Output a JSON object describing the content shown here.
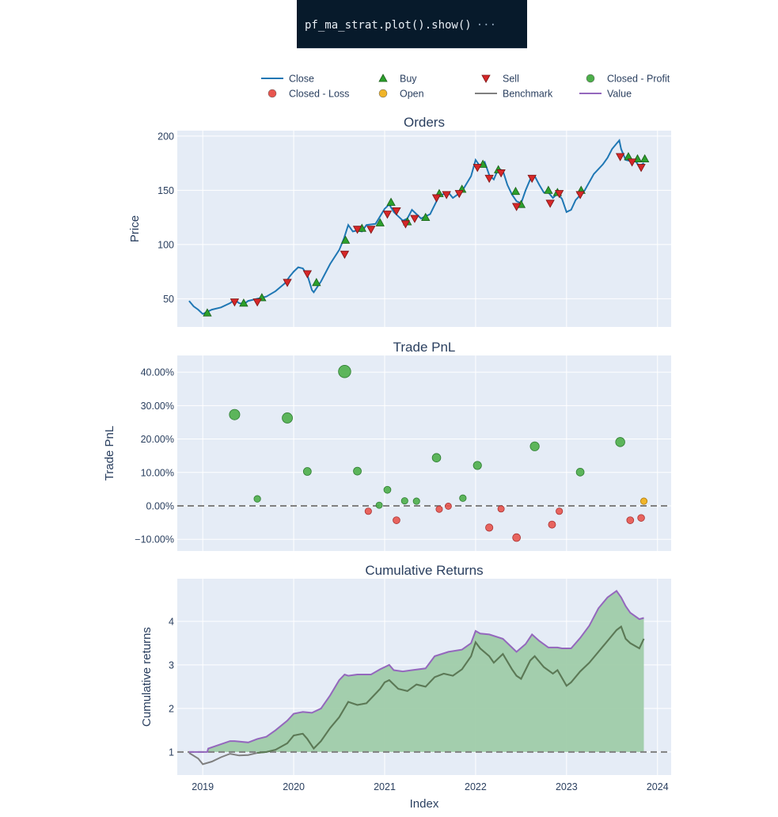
{
  "code": {
    "text": "pf_ma_strat.plot().show()",
    "ellipsis": "···"
  },
  "colors": {
    "plot_bg": "#e5ecf6",
    "grid": "#ffffff",
    "close": "#1f77b4",
    "buy": "#2ca02c",
    "sell": "#d62728",
    "profit": "#4daf4a",
    "loss": "#e8554e",
    "open": "#f0b429",
    "benchmark": "#7f7f7f",
    "value": "#9467bd",
    "fill": "#9fcca9",
    "text": "#2a3f5f"
  },
  "legend": [
    {
      "label": "Close",
      "symbol": "line",
      "color": "#1f77b4"
    },
    {
      "label": "Buy",
      "symbol": "triangle-up",
      "color": "#2ca02c"
    },
    {
      "label": "Sell",
      "symbol": "triangle-down",
      "color": "#d62728"
    },
    {
      "label": "Closed - Profit",
      "symbol": "circle",
      "color": "#4daf4a"
    },
    {
      "label": "Closed - Loss",
      "symbol": "circle",
      "color": "#e8554e"
    },
    {
      "label": "Open",
      "symbol": "circle",
      "color": "#f0b429"
    },
    {
      "label": "Benchmark",
      "symbol": "line",
      "color": "#7f7f7f"
    },
    {
      "label": "Value",
      "symbol": "line",
      "color": "#9467bd"
    }
  ],
  "chart_data": [
    {
      "type": "line",
      "title": "Orders",
      "ylabel": "Price",
      "xlim": [
        2018.72,
        2024.15
      ],
      "ylim": [
        24,
        205
      ],
      "yticks": [
        50,
        100,
        150,
        200
      ],
      "xticks": [
        2019,
        2020,
        2021,
        2022,
        2023,
        2024
      ],
      "close": [
        [
          2018.85,
          48
        ],
        [
          2018.9,
          43
        ],
        [
          2018.95,
          40
        ],
        [
          2019.0,
          36
        ],
        [
          2019.05,
          38
        ],
        [
          2019.1,
          40
        ],
        [
          2019.2,
          42
        ],
        [
          2019.3,
          46
        ],
        [
          2019.35,
          49
        ],
        [
          2019.4,
          46
        ],
        [
          2019.45,
          45
        ],
        [
          2019.5,
          48
        ],
        [
          2019.6,
          50
        ],
        [
          2019.7,
          52
        ],
        [
          2019.8,
          57
        ],
        [
          2019.9,
          64
        ],
        [
          2019.96,
          71
        ],
        [
          2020.0,
          75
        ],
        [
          2020.05,
          79
        ],
        [
          2020.1,
          78
        ],
        [
          2020.15,
          72
        ],
        [
          2020.2,
          58
        ],
        [
          2020.22,
          56
        ],
        [
          2020.3,
          66
        ],
        [
          2020.4,
          82
        ],
        [
          2020.5,
          95
        ],
        [
          2020.55,
          105
        ],
        [
          2020.6,
          118
        ],
        [
          2020.65,
          112
        ],
        [
          2020.7,
          113
        ],
        [
          2020.75,
          112
        ],
        [
          2020.8,
          118
        ],
        [
          2020.9,
          119
        ],
        [
          2020.95,
          126
        ],
        [
          2021.0,
          133
        ],
        [
          2021.05,
          137
        ],
        [
          2021.1,
          130
        ],
        [
          2021.2,
          122
        ],
        [
          2021.25,
          124
        ],
        [
          2021.3,
          132
        ],
        [
          2021.4,
          124
        ],
        [
          2021.45,
          126
        ],
        [
          2021.5,
          128
        ],
        [
          2021.6,
          145
        ],
        [
          2021.7,
          148
        ],
        [
          2021.75,
          143
        ],
        [
          2021.85,
          149
        ],
        [
          2021.95,
          163
        ],
        [
          2022.0,
          178
        ],
        [
          2022.05,
          172
        ],
        [
          2022.1,
          176
        ],
        [
          2022.15,
          164
        ],
        [
          2022.2,
          160
        ],
        [
          2022.25,
          170
        ],
        [
          2022.3,
          168
        ],
        [
          2022.35,
          155
        ],
        [
          2022.4,
          146
        ],
        [
          2022.45,
          140
        ],
        [
          2022.5,
          138
        ],
        [
          2022.55,
          150
        ],
        [
          2022.6,
          160
        ],
        [
          2022.65,
          163
        ],
        [
          2022.7,
          155
        ],
        [
          2022.75,
          148
        ],
        [
          2022.8,
          148
        ],
        [
          2022.85,
          143
        ],
        [
          2022.9,
          147
        ],
        [
          2022.95,
          142
        ],
        [
          2023.0,
          130
        ],
        [
          2023.05,
          132
        ],
        [
          2023.1,
          141
        ],
        [
          2023.2,
          150
        ],
        [
          2023.3,
          165
        ],
        [
          2023.4,
          174
        ],
        [
          2023.45,
          180
        ],
        [
          2023.5,
          188
        ],
        [
          2023.55,
          193
        ],
        [
          2023.58,
          196
        ],
        [
          2023.6,
          188
        ],
        [
          2023.65,
          178
        ],
        [
          2023.7,
          177
        ],
        [
          2023.75,
          178
        ],
        [
          2023.8,
          172
        ],
        [
          2023.85,
          175
        ]
      ],
      "buys": [
        [
          2019.05,
          37
        ],
        [
          2019.45,
          46
        ],
        [
          2019.65,
          51
        ],
        [
          2020.25,
          65
        ],
        [
          2020.57,
          104
        ],
        [
          2020.75,
          115
        ],
        [
          2020.95,
          120
        ],
        [
          2021.07,
          139
        ],
        [
          2021.25,
          121
        ],
        [
          2021.45,
          125
        ],
        [
          2021.6,
          147
        ],
        [
          2021.85,
          151
        ],
        [
          2022.08,
          174
        ],
        [
          2022.25,
          169
        ],
        [
          2022.44,
          149
        ],
        [
          2022.5,
          137
        ],
        [
          2022.8,
          150
        ],
        [
          2022.9,
          148
        ],
        [
          2023.16,
          150
        ],
        [
          2023.68,
          181
        ],
        [
          2023.78,
          179
        ],
        [
          2023.86,
          179
        ]
      ],
      "sells": [
        [
          2019.35,
          47
        ],
        [
          2019.6,
          47
        ],
        [
          2019.93,
          65
        ],
        [
          2020.15,
          73
        ],
        [
          2020.56,
          91
        ],
        [
          2020.7,
          114
        ],
        [
          2020.85,
          114
        ],
        [
          2021.03,
          128
        ],
        [
          2021.13,
          131
        ],
        [
          2021.23,
          119
        ],
        [
          2021.33,
          124
        ],
        [
          2021.57,
          143
        ],
        [
          2021.68,
          146
        ],
        [
          2021.82,
          147
        ],
        [
          2022.02,
          171
        ],
        [
          2022.15,
          161
        ],
        [
          2022.28,
          166
        ],
        [
          2022.45,
          135
        ],
        [
          2022.62,
          161
        ],
        [
          2022.82,
          138
        ],
        [
          2022.92,
          147
        ],
        [
          2023.15,
          146
        ],
        [
          2023.59,
          181
        ],
        [
          2023.72,
          176
        ],
        [
          2023.82,
          171
        ]
      ]
    },
    {
      "type": "scatter",
      "title": "Trade PnL",
      "ylabel": "Trade PnL",
      "xlim": [
        2018.72,
        2024.15
      ],
      "ylim": [
        -13.5,
        45
      ],
      "yticks": [
        -10,
        0,
        10,
        20,
        30,
        40
      ],
      "yticklabels": [
        "−10.00%",
        "0.00%",
        "10.00%",
        "20.00%",
        "30.00%",
        "40.00%"
      ],
      "xticks": [
        2019,
        2020,
        2021,
        2022,
        2023,
        2024
      ],
      "profit": [
        [
          2019.35,
          27.3
        ],
        [
          2019.6,
          2.1
        ],
        [
          2019.93,
          26.3
        ],
        [
          2020.15,
          10.3
        ],
        [
          2020.56,
          40.2
        ],
        [
          2020.7,
          10.4
        ],
        [
          2021.03,
          4.8
        ],
        [
          2021.22,
          1.5
        ],
        [
          2021.35,
          1.4
        ],
        [
          2021.57,
          14.4
        ],
        [
          2021.86,
          2.3
        ],
        [
          2022.02,
          12.1
        ],
        [
          2022.65,
          17.8
        ],
        [
          2023.15,
          10.1
        ],
        [
          2023.59,
          19.1
        ],
        [
          2020.94,
          0.2
        ]
      ],
      "loss": [
        [
          2020.82,
          -1.6
        ],
        [
          2021.13,
          -4.3
        ],
        [
          2021.6,
          -1.0
        ],
        [
          2021.7,
          -0.1
        ],
        [
          2022.15,
          -6.5
        ],
        [
          2022.28,
          -0.9
        ],
        [
          2022.45,
          -9.5
        ],
        [
          2022.84,
          -5.6
        ],
        [
          2022.92,
          -1.6
        ],
        [
          2023.7,
          -4.3
        ],
        [
          2023.82,
          -3.6
        ]
      ],
      "open": [
        [
          2023.85,
          1.4
        ]
      ],
      "zero_line": 0
    },
    {
      "type": "area",
      "title": "Cumulative Returns",
      "ylabel": "Cumulative returns",
      "xlabel": "Index",
      "xlim": [
        2018.72,
        2024.15
      ],
      "ylim": [
        0.47,
        4.98
      ],
      "yticks": [
        1,
        2,
        3,
        4
      ],
      "xticks": [
        2019,
        2020,
        2021,
        2022,
        2023,
        2024
      ],
      "xticklabels": [
        "2019",
        "2020",
        "2021",
        "2022",
        "2023",
        "2024"
      ],
      "value": [
        [
          2018.85,
          1.0
        ],
        [
          2019.05,
          1.0
        ],
        [
          2019.06,
          1.08
        ],
        [
          2019.3,
          1.25
        ],
        [
          2019.35,
          1.25
        ],
        [
          2019.5,
          1.22
        ],
        [
          2019.6,
          1.3
        ],
        [
          2019.7,
          1.35
        ],
        [
          2019.8,
          1.5
        ],
        [
          2019.93,
          1.72
        ],
        [
          2020.0,
          1.88
        ],
        [
          2020.1,
          1.92
        ],
        [
          2020.2,
          1.9
        ],
        [
          2020.3,
          2.0
        ],
        [
          2020.4,
          2.3
        ],
        [
          2020.5,
          2.65
        ],
        [
          2020.56,
          2.78
        ],
        [
          2020.6,
          2.75
        ],
        [
          2020.7,
          2.78
        ],
        [
          2020.85,
          2.78
        ],
        [
          2020.95,
          2.9
        ],
        [
          2021.05,
          3.0
        ],
        [
          2021.1,
          2.88
        ],
        [
          2021.2,
          2.85
        ],
        [
          2021.3,
          2.88
        ],
        [
          2021.45,
          2.92
        ],
        [
          2021.55,
          3.2
        ],
        [
          2021.7,
          3.3
        ],
        [
          2021.85,
          3.35
        ],
        [
          2021.95,
          3.5
        ],
        [
          2022.0,
          3.78
        ],
        [
          2022.05,
          3.72
        ],
        [
          2022.15,
          3.7
        ],
        [
          2022.3,
          3.6
        ],
        [
          2022.45,
          3.3
        ],
        [
          2022.55,
          3.48
        ],
        [
          2022.62,
          3.7
        ],
        [
          2022.7,
          3.55
        ],
        [
          2022.8,
          3.4
        ],
        [
          2022.9,
          3.4
        ],
        [
          2022.95,
          3.38
        ],
        [
          2023.05,
          3.38
        ],
        [
          2023.15,
          3.62
        ],
        [
          2023.25,
          3.9
        ],
        [
          2023.35,
          4.3
        ],
        [
          2023.45,
          4.55
        ],
        [
          2023.55,
          4.7
        ],
        [
          2023.6,
          4.55
        ],
        [
          2023.65,
          4.35
        ],
        [
          2023.7,
          4.2
        ],
        [
          2023.8,
          4.05
        ],
        [
          2023.85,
          4.08
        ]
      ],
      "benchmark": [
        [
          2018.85,
          0.98
        ],
        [
          2018.95,
          0.85
        ],
        [
          2019.0,
          0.72
        ],
        [
          2019.1,
          0.78
        ],
        [
          2019.2,
          0.88
        ],
        [
          2019.3,
          0.96
        ],
        [
          2019.4,
          0.92
        ],
        [
          2019.5,
          0.93
        ],
        [
          2019.6,
          0.98
        ],
        [
          2019.7,
          1.0
        ],
        [
          2019.8,
          1.05
        ],
        [
          2019.93,
          1.2
        ],
        [
          2020.0,
          1.38
        ],
        [
          2020.1,
          1.42
        ],
        [
          2020.15,
          1.3
        ],
        [
          2020.22,
          1.08
        ],
        [
          2020.3,
          1.25
        ],
        [
          2020.4,
          1.55
        ],
        [
          2020.5,
          1.8
        ],
        [
          2020.6,
          2.15
        ],
        [
          2020.7,
          2.08
        ],
        [
          2020.8,
          2.12
        ],
        [
          2020.95,
          2.45
        ],
        [
          2021.0,
          2.6
        ],
        [
          2021.05,
          2.65
        ],
        [
          2021.15,
          2.45
        ],
        [
          2021.25,
          2.4
        ],
        [
          2021.35,
          2.55
        ],
        [
          2021.45,
          2.5
        ],
        [
          2021.55,
          2.72
        ],
        [
          2021.65,
          2.8
        ],
        [
          2021.75,
          2.75
        ],
        [
          2021.85,
          2.9
        ],
        [
          2021.95,
          3.2
        ],
        [
          2022.0,
          3.52
        ],
        [
          2022.05,
          3.38
        ],
        [
          2022.15,
          3.2
        ],
        [
          2022.2,
          3.05
        ],
        [
          2022.3,
          3.25
        ],
        [
          2022.4,
          2.9
        ],
        [
          2022.45,
          2.75
        ],
        [
          2022.5,
          2.68
        ],
        [
          2022.6,
          3.1
        ],
        [
          2022.65,
          3.2
        ],
        [
          2022.75,
          2.95
        ],
        [
          2022.85,
          2.8
        ],
        [
          2022.9,
          2.88
        ],
        [
          2022.95,
          2.7
        ],
        [
          2023.0,
          2.52
        ],
        [
          2023.05,
          2.6
        ],
        [
          2023.15,
          2.85
        ],
        [
          2023.25,
          3.05
        ],
        [
          2023.35,
          3.3
        ],
        [
          2023.45,
          3.55
        ],
        [
          2023.55,
          3.8
        ],
        [
          2023.6,
          3.88
        ],
        [
          2023.65,
          3.6
        ],
        [
          2023.7,
          3.5
        ],
        [
          2023.8,
          3.38
        ],
        [
          2023.85,
          3.6
        ]
      ],
      "baseline": 1
    }
  ]
}
